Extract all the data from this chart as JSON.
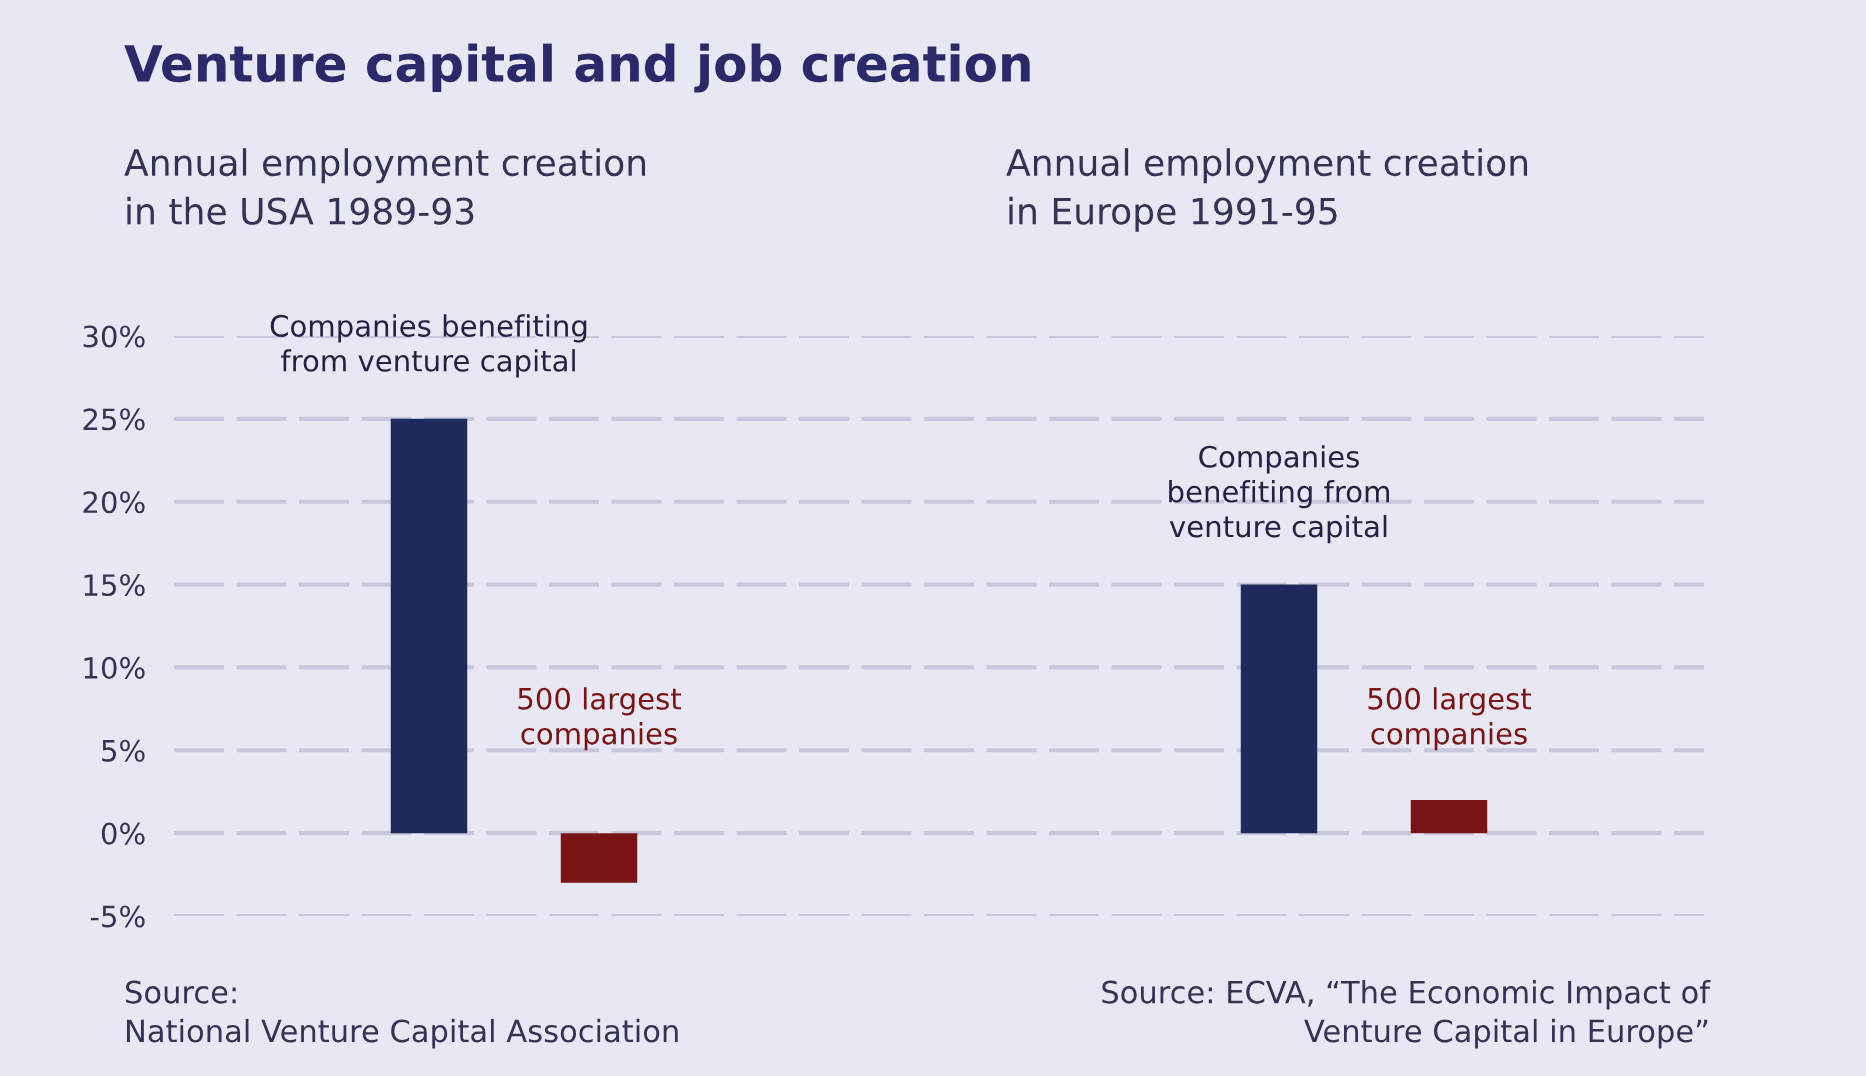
{
  "chart_data": {
    "type": "bar",
    "title": "Venture capital and job creation",
    "categories": [
      null,
      null,
      null,
      null,
      null,
      null,
      null,
      null,
      null
    ],
    "values": [
      null,
      25,
      -3,
      null,
      null,
      null,
      15,
      2,
      null
    ],
    "colors": [
      "#1e2a5c",
      "#1e2a5c",
      "#7a1414",
      "#1e2a5c",
      "#1e2a5c",
      "#1e2a5c",
      "#1e2a5c",
      "#7a1414",
      "#7a1414"
    ],
    "ylim": [
      -5,
      30
    ],
    "yticks": [
      {
        "value": -5,
        "label": "-5%"
      },
      {
        "value": 0,
        "label": "0%"
      },
      {
        "value": 5,
        "label": "5%"
      },
      {
        "value": 10,
        "label": "10%"
      },
      {
        "value": 15,
        "label": "15%"
      },
      {
        "value": 20,
        "label": "20%"
      },
      {
        "value": 25,
        "label": "25%"
      },
      {
        "value": 30,
        "label": "30%"
      }
    ],
    "grid": "y",
    "tick_labels": "y",
    "annotations": [
      "Annual employment creation\nin the USA 1989-93",
      "Annual employment creation\nin Europe 1991-95",
      "Companies benefiting\nfrom venture capital",
      "500 largest\ncompanies",
      "Companies\nbenefiting from\nventure capital",
      "500 largest\ncompanies",
      "Source:\nNational Venture Capital Association",
      "Source: ECVA, “The Economic Impact of\nVenture Capital in Europe”"
    ]
  }
}
